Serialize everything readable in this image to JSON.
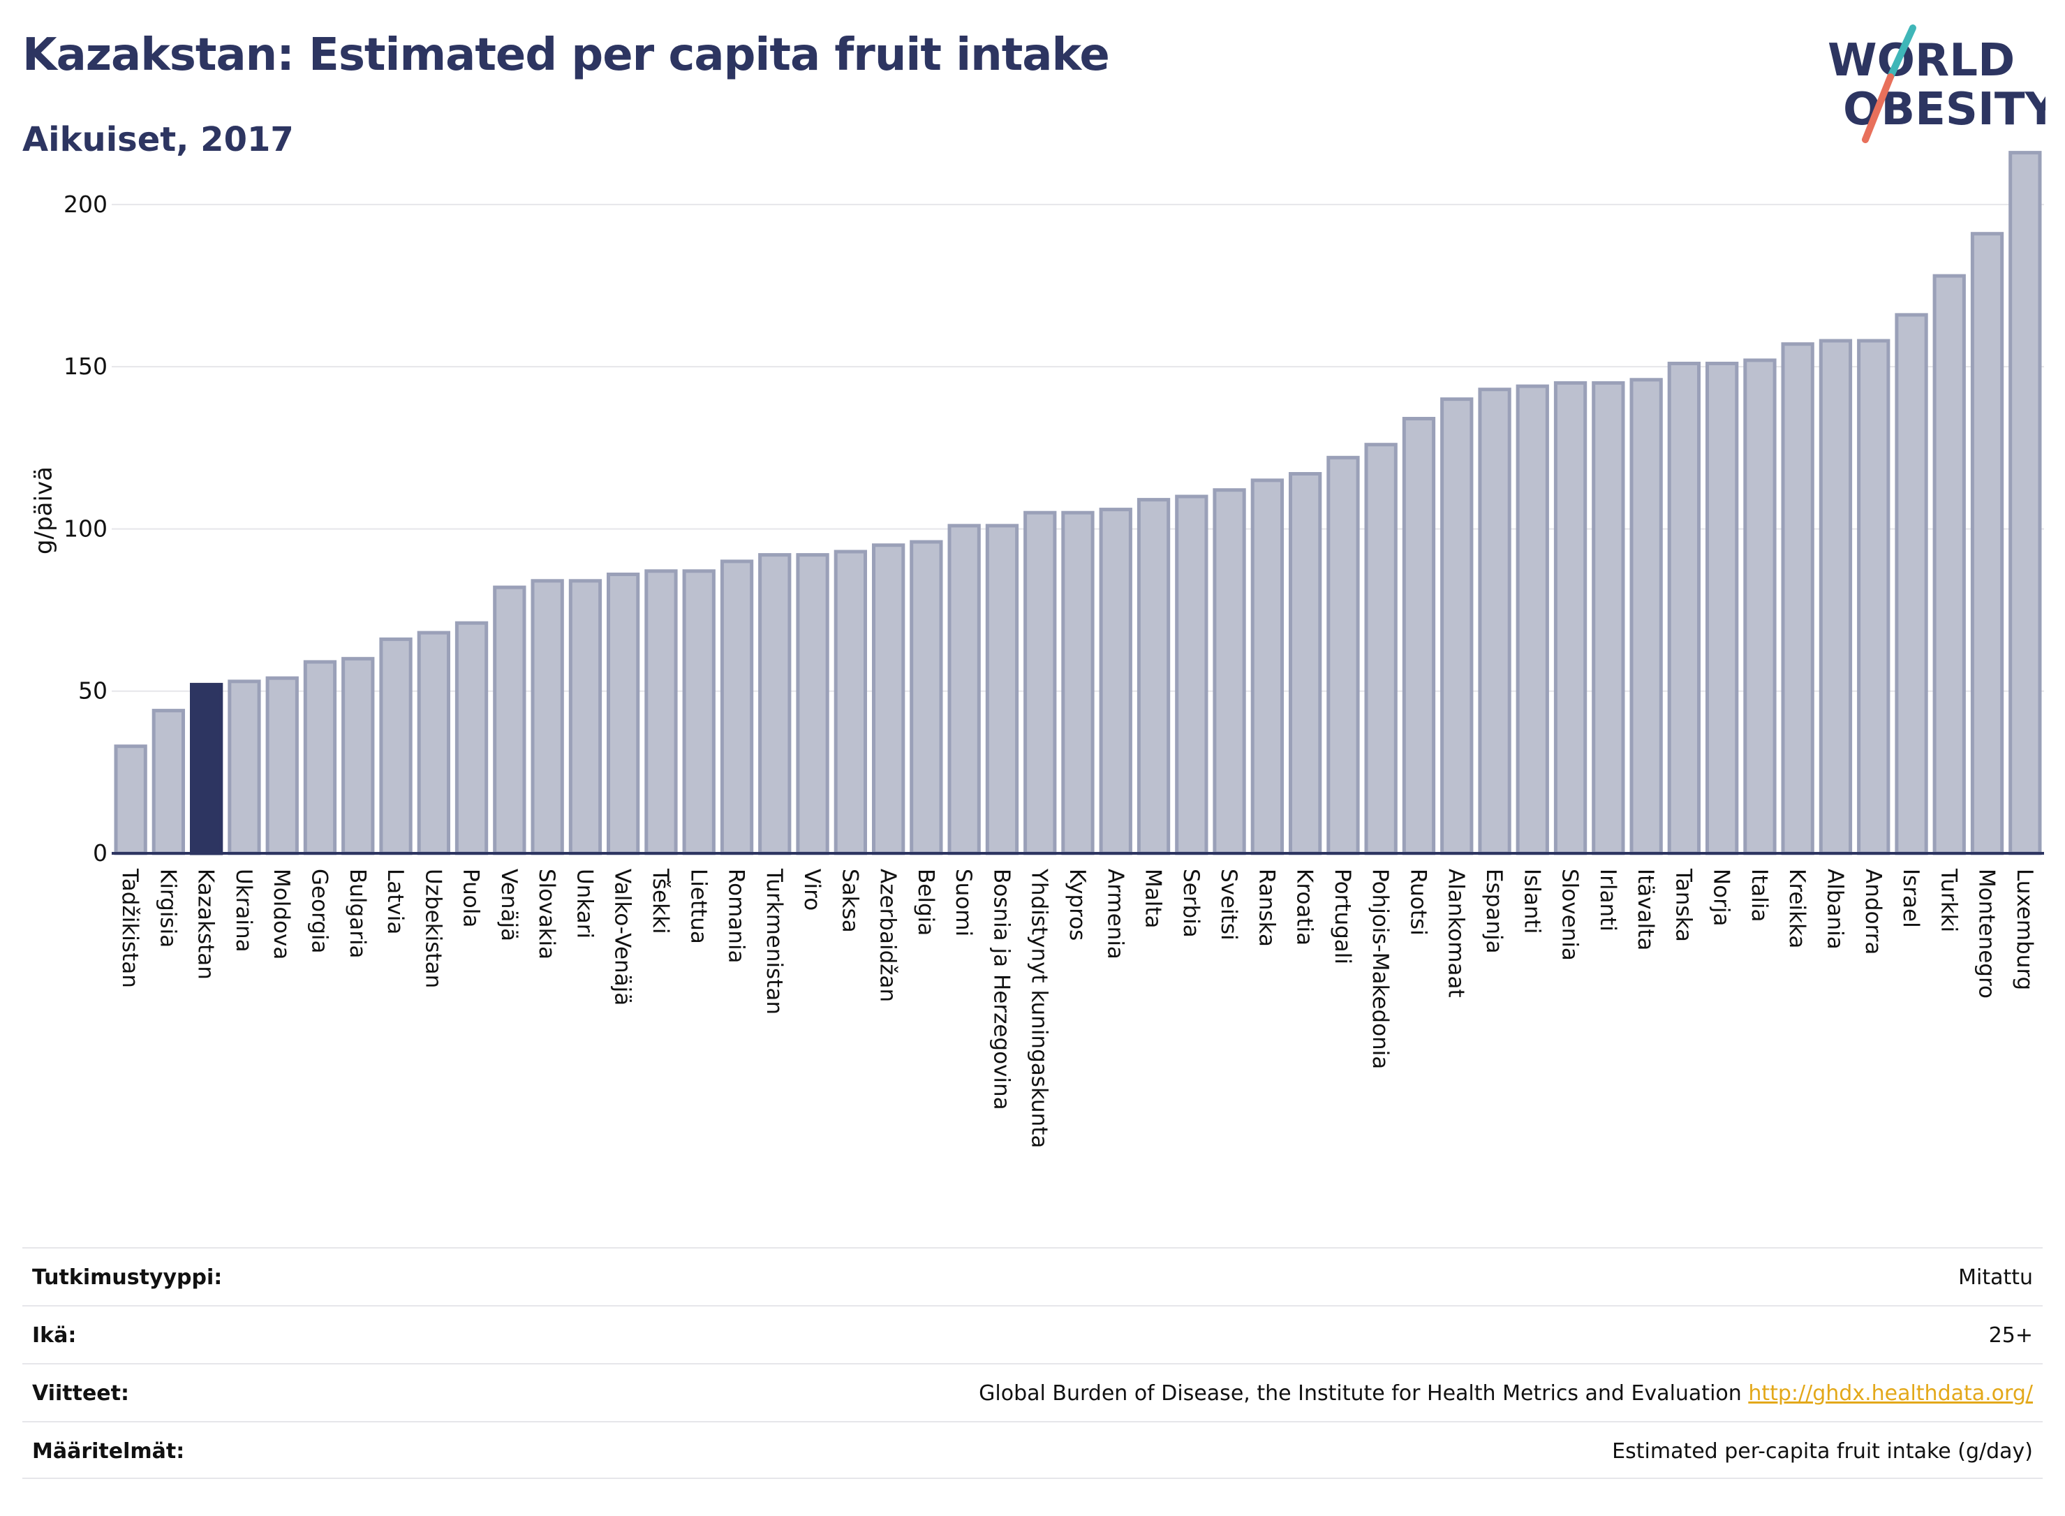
{
  "header": {
    "title": "Kazakstan: Estimated per capita fruit intake",
    "subtitle": "Aikuiset, 2017"
  },
  "logo": {
    "line1": "WORLD",
    "line2": "OBESITY",
    "colors": {
      "text": "#2d3561",
      "slash_teal": "#3fb6b8",
      "slash_coral": "#e8705b"
    }
  },
  "colors": {
    "bar_fill": "#bcc0cf",
    "bar_stroke": "#9aa0b8",
    "highlight": "#2d3561",
    "grid": "#e6e6ea",
    "axis": "#2d3561",
    "link": "#e3a81a"
  },
  "chart_data": {
    "type": "bar",
    "ylabel": "g/päivä",
    "xlabel": "",
    "ylim": [
      0,
      220
    ],
    "yticks": [
      0,
      50,
      100,
      150,
      200
    ],
    "grid": true,
    "highlight": "Kazakstan",
    "categories": [
      "Tadžikistan",
      "Kirgisia",
      "Kazakstan",
      "Ukraina",
      "Moldova",
      "Georgia",
      "Bulgaria",
      "Latvia",
      "Uzbekistan",
      "Puola",
      "Venäjä",
      "Slovakia",
      "Unkari",
      "Valko-Venäjä",
      "Tšekki",
      "Liettua",
      "Romania",
      "Turkmenistan",
      "Viro",
      "Saksa",
      "Azerbaidžan",
      "Belgia",
      "Suomi",
      "Bosnia ja Herzegovina",
      "Yhdistynyt kuningaskunta",
      "Kypros",
      "Armenia",
      "Malta",
      "Serbia",
      "Sveitsi",
      "Ranska",
      "Kroatia",
      "Portugali",
      "Pohjois-Makedonia",
      "Ruotsi",
      "Alankomaat",
      "Espanja",
      "Islanti",
      "Slovenia",
      "Irlanti",
      "Itävalta",
      "Tanska",
      "Norja",
      "Italia",
      "Kreikka",
      "Albania",
      "Andorra",
      "Israel",
      "Turkki",
      "Montenegro",
      "Luxemburg"
    ],
    "values": [
      33,
      44,
      52,
      53,
      54,
      59,
      60,
      66,
      68,
      71,
      82,
      84,
      84,
      86,
      87,
      87,
      90,
      92,
      92,
      93,
      95,
      96,
      101,
      101,
      105,
      105,
      106,
      109,
      110,
      112,
      115,
      117,
      122,
      126,
      134,
      140,
      143,
      144,
      145,
      145,
      146,
      151,
      151,
      152,
      157,
      158,
      158,
      166,
      178,
      191,
      216
    ]
  },
  "meta": {
    "rows": [
      {
        "key": "Tutkimustyyppi:",
        "value": "Mitattu",
        "link": ""
      },
      {
        "key": "Ikä:",
        "value": "25+",
        "link": ""
      },
      {
        "key": "Viitteet:",
        "value": "Global Burden of Disease, the Institute for Health Metrics and Evaluation ",
        "link": "http://ghdx.healthdata.org/"
      },
      {
        "key": "Määritelmät:",
        "value": "Estimated per-capita fruit intake (g/day)",
        "link": ""
      }
    ]
  }
}
